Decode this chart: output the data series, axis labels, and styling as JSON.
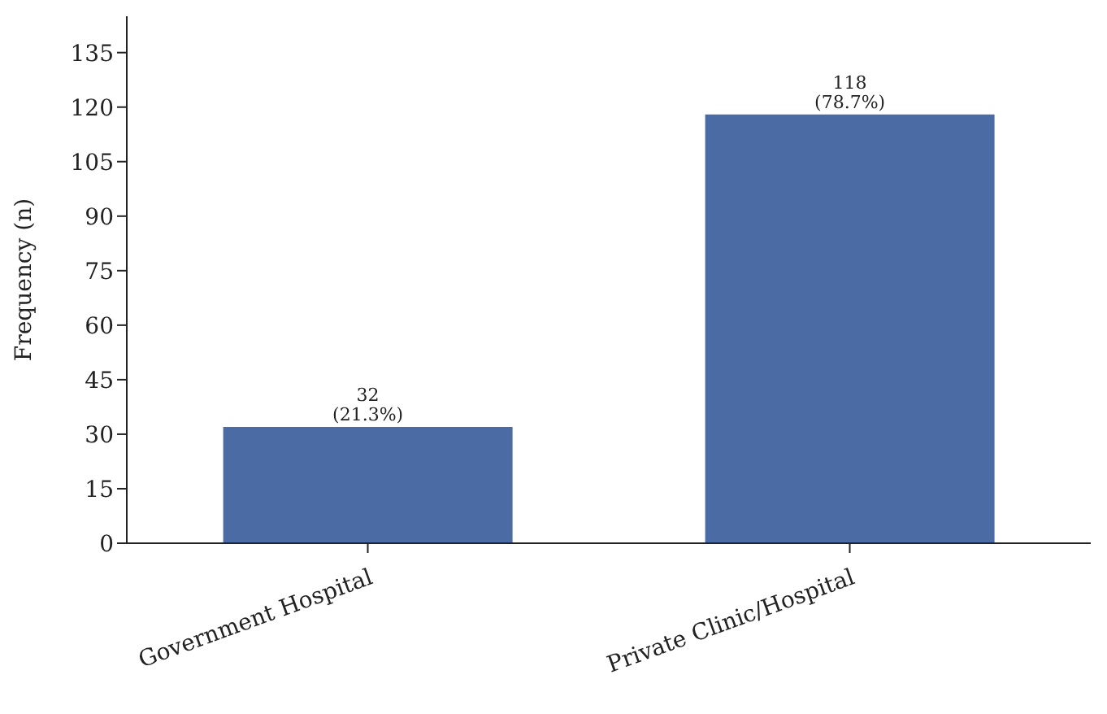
{
  "chart_data": {
    "type": "bar",
    "ylabel": "Frequency (n)",
    "categories": [
      "Government Hospital",
      "Private Clinic/Hospital"
    ],
    "values": [
      32,
      118
    ],
    "color": "#4a6ba3",
    "value_labels": [
      "32\n(21.3%)",
      "118\n(78.7%)"
    ],
    "ylim": [
      0,
      145
    ],
    "yticks": [
      0,
      15,
      30,
      45,
      60,
      75,
      90,
      105,
      120,
      135
    ]
  }
}
